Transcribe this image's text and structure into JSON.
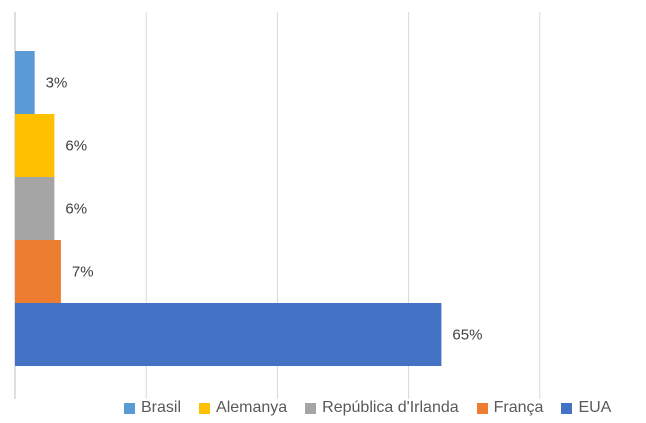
{
  "chart_data": {
    "type": "bar",
    "orientation": "horizontal",
    "stacked": false,
    "categories": [
      "Brasil",
      "Alemanya",
      "República d'Irlanda",
      "França",
      "EUA"
    ],
    "values": [
      3,
      6,
      6,
      7,
      65
    ],
    "labels": [
      "3%",
      "6%",
      "6%",
      "7%",
      "65%"
    ],
    "colors": [
      "#5B9BD5",
      "#FFC000",
      "#A5A5A5",
      "#ED7D31",
      "#4472C4"
    ],
    "xlim": [
      0,
      100
    ],
    "gridlines": [
      0,
      20,
      40,
      60,
      80
    ],
    "grid": true,
    "legend_position": "bottom",
    "title": "",
    "xlabel": "",
    "ylabel": ""
  }
}
